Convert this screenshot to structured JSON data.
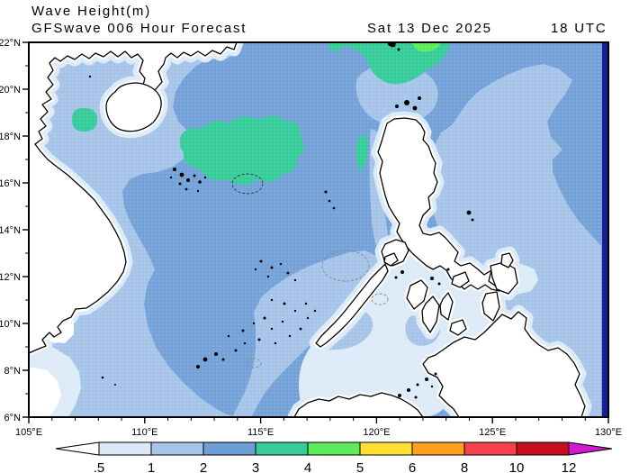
{
  "title": {
    "line1": "Wave Height(m)",
    "line2_product": "GFSwave 006 Hour Forecast",
    "line2_date": "Sat 13 Dec 2025",
    "line2_time": "18 UTC"
  },
  "map": {
    "lat_axis": {
      "labels": [
        "22°N",
        "20°N",
        "18°N",
        "16°N",
        "14°N",
        "12°N",
        "10°N",
        "8°N",
        "6°N"
      ],
      "max": 22,
      "min": 6,
      "major_step": 2,
      "minor_step": 1
    },
    "lon_axis": {
      "labels": [
        "105°E",
        "110°E",
        "115°E",
        "120°E",
        "125°E",
        "130°E"
      ],
      "min": 105,
      "max": 130,
      "major_step": 5,
      "minor_step": 1
    }
  },
  "colorbar": {
    "labels": [
      ".5",
      "1",
      "2",
      "3",
      "4",
      "5",
      "6",
      "8",
      "10",
      "12"
    ],
    "cell_colors": [
      "#dbe8f5",
      "#a6c4e7",
      "#6f9dd6",
      "#36cc99",
      "#5dea5d",
      "#ffdf33",
      "#ffa01e",
      "#f5424d",
      "#c50f1f"
    ],
    "left_arrow_color": "#ffffff",
    "right_arrow_color": "#d516d5"
  },
  "palette": {
    "sea_lt_05": "#ffffff",
    "sea_05_1": "#dcebf7",
    "sea_1_2": "#a6c4e7",
    "sea_2_3": "#74a2d8",
    "wave_3_4": "#36cc99",
    "wave_4_5": "#5dea5d",
    "land": "#ffffff",
    "coast": "#000000",
    "edge_stripe": "#1a1c96"
  }
}
